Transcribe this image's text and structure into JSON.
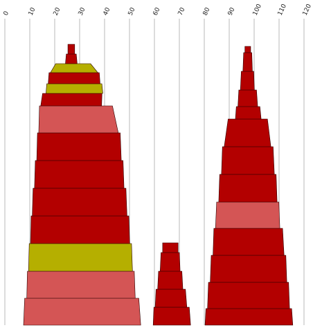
{
  "chart_data": {
    "type": "area",
    "orientation": "vertical-stacked-profiles",
    "xlabel": "",
    "ylabel": "",
    "x_ticks": [
      0,
      10,
      20,
      30,
      40,
      50,
      60,
      70,
      80,
      90,
      100,
      110,
      120
    ],
    "xlim": [
      0,
      120
    ],
    "grid": true,
    "colors": {
      "dark_red": "#b30000",
      "light_red": "#d45555",
      "olive": "#b5af00"
    },
    "shapes": [
      {
        "name": "",
        "levels": [
          {
            "left": 7.5,
            "right": 54.5,
            "color": "light_red"
          },
          {
            "left": 8.8,
            "right": 52.3,
            "color": "light_red"
          },
          {
            "left": 9.5,
            "right": 51.2,
            "color": "olive"
          },
          {
            "left": 10.3,
            "right": 50.1,
            "color": "dark_red"
          },
          {
            "left": 11.0,
            "right": 49.0,
            "color": "dark_red"
          },
          {
            "left": 11.9,
            "right": 47.8,
            "color": "dark_red"
          },
          {
            "left": 12.8,
            "right": 46.7,
            "color": "dark_red"
          },
          {
            "left": 13.6,
            "right": 45.5,
            "color": "light_red"
          },
          {
            "left": 14.4,
            "right": 38.8,
            "color": "dark_red"
          },
          {
            "left": 16.5,
            "right": 39.3,
            "color": "olive"
          },
          {
            "left": 17.4,
            "right": 38.2,
            "color": "dark_red"
          },
          {
            "left": 18.3,
            "right": 37.3,
            "color": "olive"
          },
          {
            "left": 24.3,
            "right": 29.0,
            "color": "dark_red"
          },
          {
            "left": 25.3,
            "right": 28.0,
            "color": "dark_red"
          }
        ]
      },
      {
        "name": "",
        "levels": [
          {
            "left": 59.5,
            "right": 74.5,
            "color": "dark_red"
          },
          {
            "left": 60.3,
            "right": 73.0,
            "color": "dark_red"
          },
          {
            "left": 61.3,
            "right": 71.4,
            "color": "dark_red"
          },
          {
            "left": 62.3,
            "right": 70.3,
            "color": "dark_red"
          },
          {
            "left": 63.3,
            "right": 69.5,
            "color": "dark_red"
          }
        ]
      },
      {
        "name": "",
        "levels": [
          {
            "left": 80.3,
            "right": 115.5,
            "color": "dark_red"
          },
          {
            "left": 81.3,
            "right": 114.2,
            "color": "dark_red"
          },
          {
            "left": 82.4,
            "right": 113.1,
            "color": "dark_red"
          },
          {
            "left": 83.5,
            "right": 112.0,
            "color": "dark_red"
          },
          {
            "left": 84.5,
            "right": 110.3,
            "color": "light_red"
          },
          {
            "left": 85.8,
            "right": 109.2,
            "color": "dark_red"
          },
          {
            "left": 86.9,
            "right": 108.1,
            "color": "dark_red"
          },
          {
            "left": 88.0,
            "right": 106.7,
            "color": "dark_red"
          },
          {
            "left": 92.5,
            "right": 102.8,
            "color": "dark_red"
          },
          {
            "left": 93.5,
            "right": 101.4,
            "color": "dark_red"
          },
          {
            "left": 94.5,
            "right": 100.1,
            "color": "dark_red"
          },
          {
            "left": 95.5,
            "right": 99.3,
            "color": "dark_red"
          },
          {
            "left": 96.3,
            "right": 98.6,
            "color": "dark_red"
          }
        ]
      }
    ]
  }
}
